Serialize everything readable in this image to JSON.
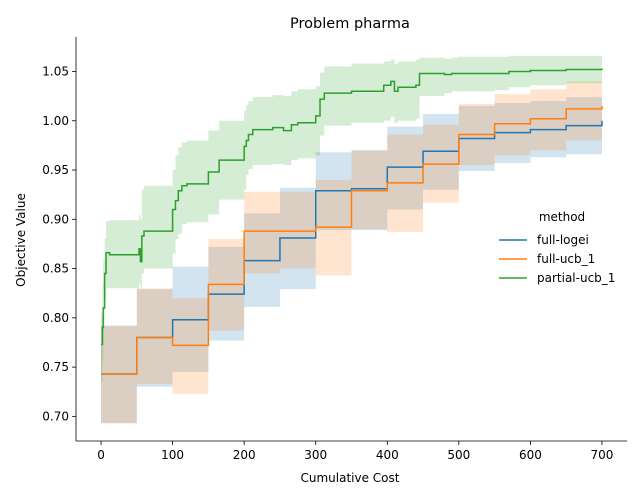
{
  "chart_data": {
    "type": "line",
    "title": "Problem pharma",
    "xlabel": "Cumulative Cost",
    "ylabel": "Objective Value",
    "xlim": [
      -35,
      735
    ],
    "ylim": [
      0.675,
      1.085
    ],
    "xticks": [
      0,
      100,
      200,
      300,
      400,
      500,
      600,
      700
    ],
    "xtick_labels": [
      "0",
      "100",
      "200",
      "300",
      "400",
      "500",
      "600",
      "700"
    ],
    "yticks": [
      0.7,
      0.75,
      0.8,
      0.85,
      0.9,
      0.95,
      1.0,
      1.05
    ],
    "ytick_labels": [
      "0.70",
      "0.75",
      "0.80",
      "0.85",
      "0.90",
      "0.95",
      "1.00",
      "1.05"
    ],
    "grid": false,
    "legend": {
      "title": "method",
      "placement": "right"
    },
    "series": [
      {
        "name": "full-logei",
        "color": "#1f77b4",
        "x": [
          0,
          50,
          100,
          150,
          200,
          250,
          300,
          350,
          400,
          450,
          500,
          550,
          600,
          650,
          700
        ],
        "y": [
          0.743,
          0.78,
          0.798,
          0.824,
          0.858,
          0.881,
          0.929,
          0.931,
          0.953,
          0.969,
          0.982,
          0.988,
          0.991,
          0.995,
          1.0
        ],
        "lower": [
          0.693,
          0.73,
          0.745,
          0.777,
          0.811,
          0.829,
          0.889,
          0.889,
          0.91,
          0.93,
          0.949,
          0.957,
          0.963,
          0.966,
          0.966
        ],
        "upper": [
          0.792,
          0.829,
          0.852,
          0.872,
          0.906,
          0.932,
          0.968,
          0.97,
          0.994,
          1.007,
          1.015,
          1.018,
          1.02,
          1.024,
          1.035
        ]
      },
      {
        "name": "full-ucb_1",
        "color": "#ff7f0e",
        "x": [
          0,
          50,
          100,
          150,
          200,
          250,
          300,
          350,
          400,
          450,
          500,
          550,
          600,
          650,
          700
        ],
        "y": [
          0.743,
          0.78,
          0.772,
          0.834,
          0.888,
          0.888,
          0.892,
          0.929,
          0.937,
          0.956,
          0.986,
          0.997,
          1.002,
          1.012,
          1.015
        ],
        "lower": [
          0.693,
          0.733,
          0.723,
          0.787,
          0.845,
          0.85,
          0.843,
          0.89,
          0.887,
          0.917,
          0.955,
          0.965,
          0.97,
          0.98,
          0.98
        ],
        "upper": [
          0.792,
          0.83,
          0.82,
          0.88,
          0.928,
          0.928,
          0.94,
          0.97,
          0.986,
          0.996,
          1.017,
          1.027,
          1.032,
          1.04,
          1.045
        ]
      },
      {
        "name": "partial-ucb_1",
        "color": "#2ca02c",
        "x": [
          0,
          2,
          3,
          5,
          7,
          12,
          53,
          55,
          57,
          60,
          100,
          104,
          108,
          113,
          120,
          150,
          165,
          200,
          203,
          206,
          212,
          240,
          255,
          266,
          275,
          300,
          306,
          312,
          350,
          395,
          405,
          410,
          415,
          440,
          445,
          480,
          490,
          500,
          550,
          570,
          600,
          650,
          700
        ],
        "y": [
          0.773,
          0.79,
          0.81,
          0.845,
          0.866,
          0.864,
          0.87,
          0.857,
          0.883,
          0.888,
          0.91,
          0.919,
          0.929,
          0.934,
          0.936,
          0.948,
          0.96,
          0.974,
          0.98,
          0.986,
          0.991,
          0.993,
          0.99,
          0.996,
          0.998,
          1.005,
          1.022,
          1.028,
          1.03,
          1.036,
          1.04,
          1.03,
          1.034,
          1.036,
          1.048,
          1.047,
          1.048,
          1.048,
          1.048,
          1.05,
          1.051,
          1.052,
          1.053
        ],
        "lower": [
          0.735,
          0.755,
          0.79,
          0.82,
          0.83,
          0.83,
          0.835,
          0.83,
          0.845,
          0.85,
          0.865,
          0.88,
          0.885,
          0.895,
          0.897,
          0.905,
          0.92,
          0.93,
          0.945,
          0.951,
          0.955,
          0.956,
          0.955,
          0.96,
          0.962,
          0.965,
          0.985,
          0.995,
          0.998,
          1.0,
          1.004,
          0.998,
          1.0,
          1.002,
          1.025,
          1.028,
          1.03,
          1.03,
          1.031,
          1.034,
          1.036,
          1.038,
          1.04
        ],
        "upper": [
          0.805,
          0.835,
          0.86,
          0.88,
          0.898,
          0.899,
          0.905,
          0.9,
          0.93,
          0.934,
          0.95,
          0.965,
          0.973,
          0.978,
          0.98,
          0.99,
          1.0,
          1.01,
          1.016,
          1.02,
          1.024,
          1.026,
          1.025,
          1.03,
          1.032,
          1.035,
          1.049,
          1.055,
          1.058,
          1.06,
          1.062,
          1.058,
          1.06,
          1.062,
          1.064,
          1.063,
          1.064,
          1.065,
          1.065,
          1.066,
          1.066,
          1.066,
          1.066
        ]
      }
    ]
  }
}
